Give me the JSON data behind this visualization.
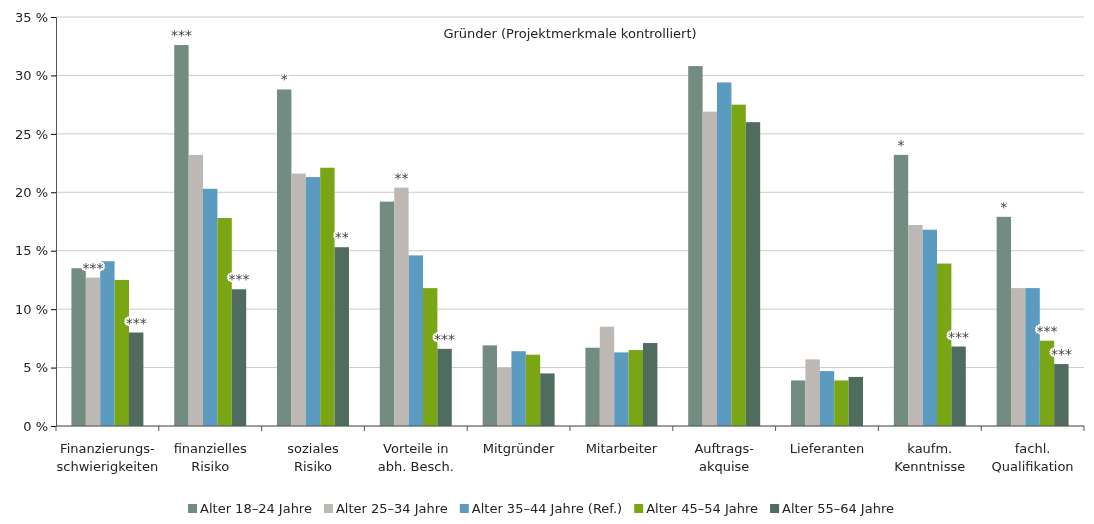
{
  "chart_data": {
    "type": "bar",
    "title": "Gründer (Projektmerkmale kontrolliert)",
    "categories": [
      "Finanzierungs-\nschwierigkeiten",
      "finanzielles Risiko",
      "soziales\nRisiko",
      "Vorteile in\nabh. Besch.",
      "Mitgründer",
      "Mitarbeiter",
      "Auftrags-\nakquise",
      "Lieferanten",
      "kaufm.\nKenntnisse",
      "fachl.\nQualifikation"
    ],
    "series": [
      {
        "name": "Alter 18–24 Jahre",
        "color": "#728c81",
        "values": [
          13.5,
          32.6,
          28.8,
          19.2,
          6.9,
          6.7,
          30.8,
          3.9,
          23.2,
          17.9
        ],
        "value_labels": [
          null,
          "***",
          "*",
          null,
          null,
          null,
          null,
          null,
          "*",
          "*"
        ]
      },
      {
        "name": "Alter 25–34 Jahre",
        "color": "#bdb8b3",
        "values": [
          12.7,
          23.2,
          21.6,
          20.4,
          5.0,
          8.5,
          26.9,
          5.7,
          17.2,
          11.8
        ],
        "value_labels": [
          "***",
          null,
          null,
          "**",
          null,
          null,
          null,
          null,
          null,
          null
        ]
      },
      {
        "name": "Alter 35–44 Jahre (Ref.)",
        "color": "#5b9bbf",
        "values": [
          14.1,
          20.3,
          21.3,
          14.6,
          6.4,
          6.3,
          29.4,
          4.7,
          16.8,
          11.8
        ]
      },
      {
        "name": "Alter 45–54 Jahre",
        "color": "#7aa616",
        "values": [
          12.5,
          17.8,
          22.1,
          11.8,
          6.1,
          6.5,
          27.5,
          3.9,
          13.9,
          7.3
        ],
        "value_labels": [
          null,
          null,
          null,
          null,
          null,
          null,
          null,
          null,
          null,
          "***"
        ]
      },
      {
        "name": "Alter 55–64 Jahre",
        "color": "#506c5e",
        "values": [
          8.0,
          11.7,
          15.3,
          6.6,
          4.5,
          7.1,
          26.0,
          4.2,
          6.8,
          5.3
        ],
        "value_labels": [
          "***",
          "***",
          "**",
          "***",
          null,
          null,
          null,
          null,
          "***",
          "***"
        ]
      }
    ],
    "ylim": [
      0,
      35
    ],
    "yticks": [
      {
        "value": 0,
        "label": "0 %"
      },
      {
        "value": 5,
        "label": "5 %"
      },
      {
        "value": 10,
        "label": "10 %"
      },
      {
        "value": 15,
        "label": "15 %"
      },
      {
        "value": 20,
        "label": "20 %"
      },
      {
        "value": 25,
        "label": "25 %"
      },
      {
        "value": 30,
        "label": "30 %"
      },
      {
        "value": 35,
        "label": "35 %"
      }
    ],
    "grid": "y",
    "legend": "bottom"
  }
}
